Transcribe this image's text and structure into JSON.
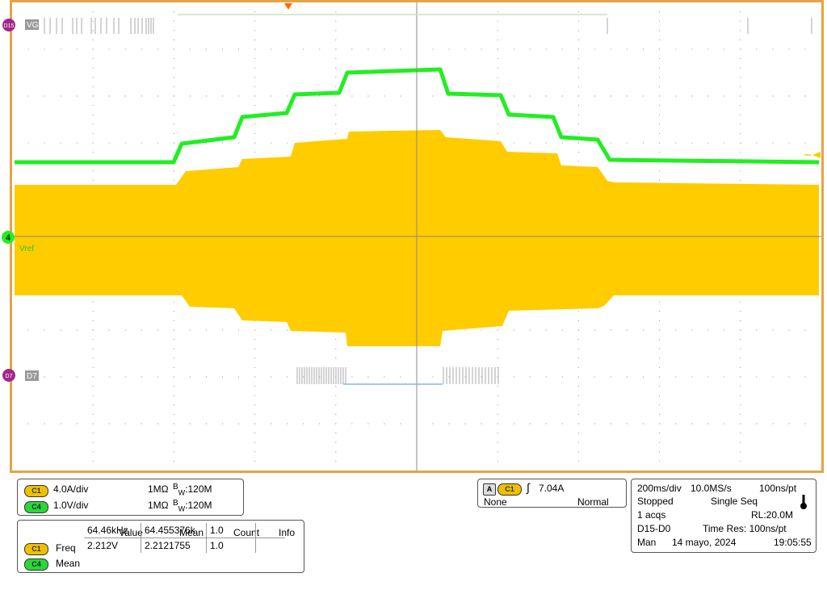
{
  "colors": {
    "frame": "#e4a445",
    "grid": "#8a8a8a",
    "ch1": "#ffcc00",
    "ch4": "#22ee22",
    "digital": "#aaaaaa",
    "digital_badge": "#a0278a"
  },
  "screen": {
    "digital_top": {
      "badge": "D15",
      "label": "VG"
    },
    "digital_bottom": {
      "badge": "D7",
      "label": "D7"
    },
    "ch4_marker": {
      "badge": "4",
      "label": "Vref"
    }
  },
  "channel_setup": [
    {
      "badge": "C1",
      "scale": "4.0A/div",
      "impedance": "1MΩ",
      "bw_prefix": "B",
      "bw_sub": "W",
      "bw_value": ":120M"
    },
    {
      "badge": "C4",
      "scale": "1.0V/div",
      "impedance": "1MΩ",
      "bw_prefix": "B",
      "bw_sub": "W",
      "bw_value": ":120M"
    }
  ],
  "trigger": {
    "badge_a": "A",
    "badge_ch": "C1",
    "edge_symbol": "∫",
    "level": "7.04A",
    "coupling": "None",
    "mode": "Normal"
  },
  "acquisition": {
    "timebase": "200ms/div",
    "sample_rate": "10.0MS/s",
    "resolution": "100ns/pt",
    "state": "Stopped",
    "seq_mode": "Single Seq",
    "acqs": "1 acqs",
    "record_length": "RL:20.0M",
    "digital_range": "D15-D0",
    "time_res": "Time Res: 100ns/pt",
    "day": "Man",
    "date": "14 mayo, 2024",
    "time": "19:05:55"
  },
  "measurements": {
    "headers": [
      "",
      "Value",
      "Mean",
      "Count",
      "Info"
    ],
    "rows": [
      {
        "badge": "C1",
        "name": "Freq",
        "value": "64.46kHz",
        "mean": "64.455376k",
        "count": "1.0",
        "info": ""
      },
      {
        "badge": "C4",
        "name": "Mean",
        "value": "2.212V",
        "mean": "2.2121755",
        "count": "1.0",
        "info": ""
      }
    ]
  }
}
